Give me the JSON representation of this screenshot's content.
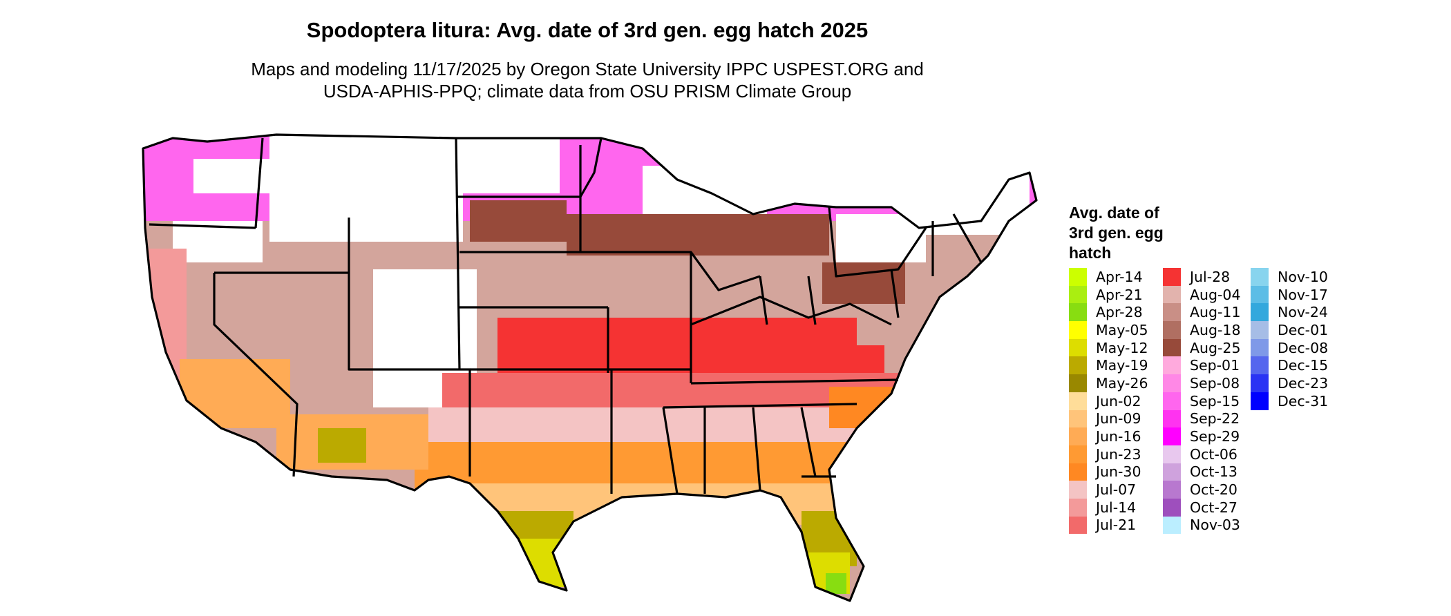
{
  "title": "Spodoptera litura: Avg. date of 3rd gen. egg hatch 2025",
  "subtitle_line1": "Maps and modeling 11/17/2025 by Oregon State University IPPC USPEST.ORG and",
  "subtitle_line2": "USDA-APHIS-PPQ; climate data from OSU PRISM Climate Group",
  "legend": {
    "title_line1": "Avg. date of",
    "title_line2": "3rd gen. egg",
    "title_line3": "hatch",
    "columns": [
      [
        {
          "label": "Apr-14",
          "color": "#ccff00"
        },
        {
          "label": "Apr-21",
          "color": "#aaee11"
        },
        {
          "label": "Apr-28",
          "color": "#88dd11"
        },
        {
          "label": "May-05",
          "color": "#ffff00"
        },
        {
          "label": "May-12",
          "color": "#dddd00"
        },
        {
          "label": "May-19",
          "color": "#bbaa00"
        },
        {
          "label": "May-26",
          "color": "#998800"
        },
        {
          "label": "Jun-02",
          "color": "#ffdd99"
        },
        {
          "label": "Jun-09",
          "color": "#ffc47a"
        },
        {
          "label": "Jun-16",
          "color": "#ffab55"
        },
        {
          "label": "Jun-23",
          "color": "#ff9a33"
        },
        {
          "label": "Jun-30",
          "color": "#ff8822"
        },
        {
          "label": "Jul-07",
          "color": "#f4c4c4"
        },
        {
          "label": "Jul-14",
          "color": "#f39a9a"
        },
        {
          "label": "Jul-21",
          "color": "#f26a6a"
        }
      ],
      [
        {
          "label": "Jul-28",
          "color": "#f53333"
        },
        {
          "label": "Aug-04",
          "color": "#e2b3ad"
        },
        {
          "label": "Aug-11",
          "color": "#c98f86"
        },
        {
          "label": "Aug-18",
          "color": "#b06f62"
        },
        {
          "label": "Aug-25",
          "color": "#974a3a"
        },
        {
          "label": "Sep-01",
          "color": "#ffaadd"
        },
        {
          "label": "Sep-08",
          "color": "#ff88e6"
        },
        {
          "label": "Sep-15",
          "color": "#ff66ee"
        },
        {
          "label": "Sep-22",
          "color": "#ff33f0"
        },
        {
          "label": "Sep-29",
          "color": "#ff00ff"
        },
        {
          "label": "Oct-06",
          "color": "#e8c8ee"
        },
        {
          "label": "Oct-13",
          "color": "#cfa2dd"
        },
        {
          "label": "Oct-20",
          "color": "#b878cf"
        },
        {
          "label": "Oct-27",
          "color": "#9e4fbd"
        },
        {
          "label": "Nov-03",
          "color": "#bbeeff"
        }
      ],
      [
        {
          "label": "Nov-10",
          "color": "#88d4ee"
        },
        {
          "label": "Nov-17",
          "color": "#5cbde6"
        },
        {
          "label": "Nov-24",
          "color": "#33a8dd"
        },
        {
          "label": "Dec-01",
          "color": "#a6bde6"
        },
        {
          "label": "Dec-08",
          "color": "#7f99e8"
        },
        {
          "label": "Dec-15",
          "color": "#5566ee"
        },
        {
          "label": "Dec-23",
          "color": "#2a33f4"
        },
        {
          "label": "Dec-31",
          "color": "#0000ff"
        }
      ]
    ]
  }
}
